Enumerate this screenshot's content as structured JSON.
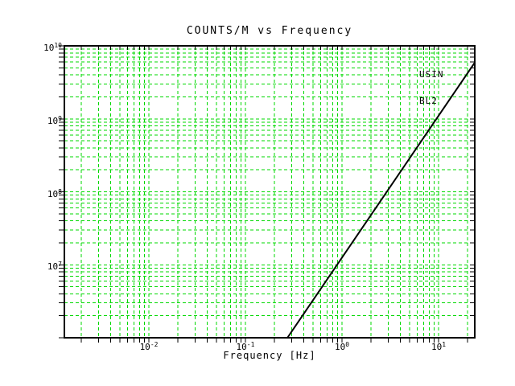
{
  "window": {
    "background": "#ffffff",
    "text_color": "#000000"
  },
  "chart_data": {
    "type": "line",
    "title": "COUNTS/M vs Frequency",
    "xlabel": "Frequency [Hz]",
    "ylabel": "",
    "x_scale": "log",
    "y_scale": "log",
    "xlim": [
      0.001333,
      23.71
    ],
    "ylim": [
      1000000,
      10000000000
    ],
    "grid": {
      "color": "#00d800",
      "style": "dashed",
      "minor_divisions": true
    },
    "axis_color": "#000000",
    "x_ticks": [
      {
        "value": 0.01,
        "base": "10",
        "exp": "-2"
      },
      {
        "value": 0.1,
        "base": "10",
        "exp": "-1"
      },
      {
        "value": 1,
        "base": "10",
        "exp": "0"
      },
      {
        "value": 10,
        "base": "10",
        "exp": "1"
      }
    ],
    "y_ticks": [
      {
        "value": 10000000000,
        "base": "10",
        "exp": "10"
      },
      {
        "value": 1000000000,
        "base": "10",
        "exp": "9"
      },
      {
        "value": 100000000,
        "base": "10",
        "exp": "8"
      },
      {
        "value": 10000000,
        "base": "10",
        "exp": "7"
      }
    ],
    "series": [
      {
        "name": "USIN BL2",
        "color": "#000000",
        "power_law_slope": 2,
        "points": [
          [
            0.272,
            1000000
          ],
          [
            23.71,
            5900000000
          ]
        ]
      }
    ],
    "annotation": {
      "lines": [
        "USIN",
        "BL2"
      ],
      "color": "#000000"
    },
    "legend_position": "top-right-inside"
  }
}
